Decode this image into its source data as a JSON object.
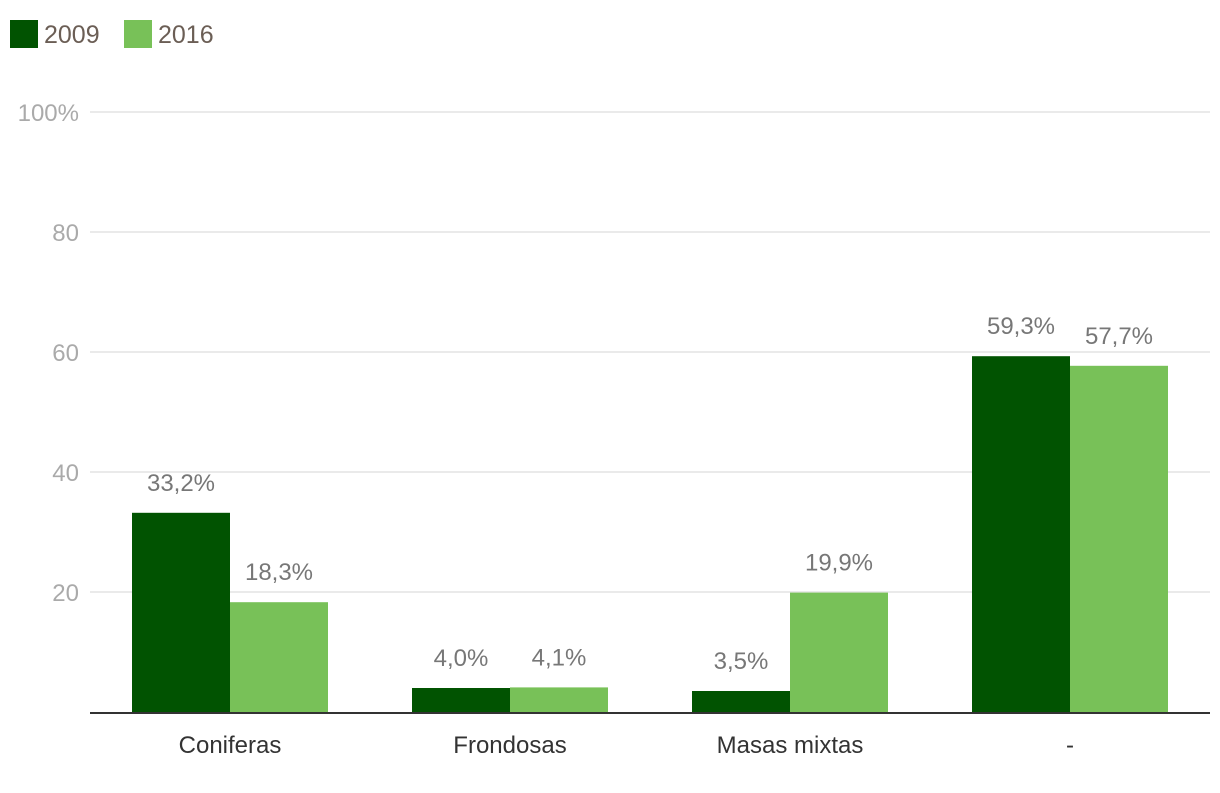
{
  "colors": {
    "s2009": "#015301",
    "s2016": "#78c158",
    "grid": "#e3e3e3",
    "axis": "#333333",
    "tick": "#aaaaaa",
    "label": "#777777",
    "legend": "#6b5e55"
  },
  "chart_data": {
    "type": "bar",
    "title": "",
    "xlabel": "",
    "ylabel": "",
    "categories": [
      "Coniferas",
      "Frondosas",
      "Masas mixtas",
      "-"
    ],
    "series": [
      {
        "name": "2009",
        "values": [
          33.2,
          4.0,
          3.5,
          59.3
        ],
        "labels": [
          "33,2%",
          "4,0%",
          "3,5%",
          "59,3%"
        ]
      },
      {
        "name": "2016",
        "values": [
          18.3,
          4.1,
          19.9,
          57.7
        ],
        "labels": [
          "18,3%",
          "4,1%",
          "19,9%",
          "57,7%"
        ]
      }
    ],
    "ylim": [
      0,
      100
    ],
    "yticks": [
      20,
      40,
      60,
      80,
      100
    ],
    "ytick_labels": [
      "20",
      "40",
      "60",
      "80",
      "100%"
    ],
    "grid": true,
    "legend_position": "top-left"
  }
}
